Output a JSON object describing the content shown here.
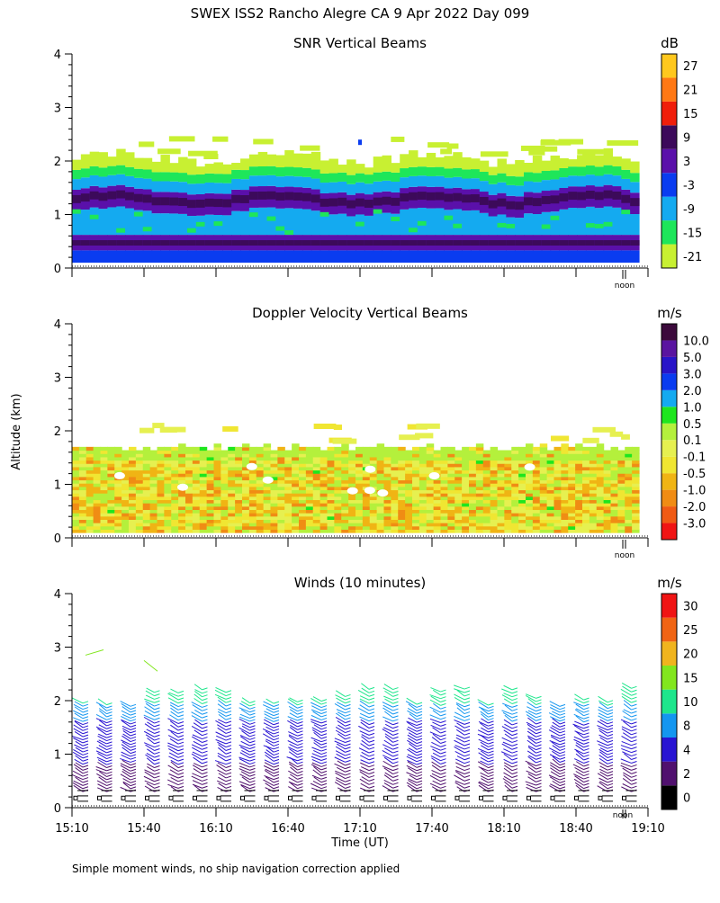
{
  "header": {
    "title": "SWEX ISS2 Rancho Alegre CA    9 Apr 2022 Day 099",
    "footnote": "Simple moment winds, no ship navigation correction applied"
  },
  "axes": {
    "ylabel": "Altitude (km)",
    "xlabel": "Time (UT)",
    "yticks": [
      "0",
      "1",
      "2",
      "3",
      "4"
    ],
    "xticks": [
      "15:10",
      "15:40",
      "16:10",
      "16:40",
      "17:10",
      "17:40",
      "18:10",
      "18:40",
      "19:10"
    ],
    "noon_marker": "noon"
  },
  "colors": {
    "snr": [
      "#c8f032",
      "#1ee65a",
      "#14aaf0",
      "#0a3cf0",
      "#5a10aa",
      "#3c0a5a",
      "#f01e0a",
      "#ff7814",
      "#ffc81e"
    ],
    "doppler": [
      "#f01414",
      "#f05a14",
      "#f08c14",
      "#f0b414",
      "#f0e632",
      "#e6f050",
      "#b4f03c",
      "#1ee61e",
      "#14aaf0",
      "#0a3cf0",
      "#2814c8",
      "#5a14a0",
      "#3c0a3c"
    ],
    "winds": [
      "#000000",
      "#50106e",
      "#2814d2",
      "#1496f0",
      "#1ee68c",
      "#82e61e",
      "#f0b41e",
      "#f06414",
      "#f01414"
    ]
  },
  "chart_data": [
    {
      "type": "heatmap",
      "title": "SNR Vertical Beams",
      "units": "dB",
      "colorbar_labels": [
        "27",
        "21",
        "15",
        "9",
        "3",
        "-3",
        "-9",
        "-15",
        "-21"
      ],
      "xlim": [
        "15:10",
        "19:10"
      ],
      "ylim": [
        0,
        4
      ],
      "description_layers": [
        {
          "from_km": 0.1,
          "to_km": 0.35,
          "level": "-3"
        },
        {
          "from_km": 0.35,
          "to_km": 0.6,
          "level": "9"
        },
        {
          "from_km": 0.6,
          "to_km": 1.1,
          "level": "-9"
        },
        {
          "from_km": 1.1,
          "to_km": 1.5,
          "level": "3"
        },
        {
          "from_km": 1.5,
          "to_km": 1.8,
          "level": "-15"
        },
        {
          "from_km": 1.8,
          "to_km": 2.2,
          "level": "-21"
        }
      ]
    },
    {
      "type": "heatmap",
      "title": "Doppler Velocity Vertical Beams",
      "units": "m/s",
      "colorbar_labels": [
        "10.0",
        "5.0",
        "3.0",
        "2.0",
        "1.0",
        "0.5",
        "0.1",
        "-0.1",
        "-0.5",
        "-1.0",
        "-2.0",
        "-3.0"
      ],
      "xlim": [
        "15:10",
        "19:10"
      ],
      "ylim": [
        0,
        4
      ],
      "top_km": 1.7
    },
    {
      "type": "scatter",
      "title": "Winds (10 minutes)",
      "units": "m/s",
      "colorbar_labels": [
        "30",
        "25",
        "20",
        "15",
        "10",
        "8",
        "4",
        "2",
        "0"
      ],
      "xlim": [
        "15:10",
        "19:10"
      ],
      "ylim": [
        0,
        4
      ],
      "profile_times": [
        "15:15",
        "15:25",
        "15:35",
        "15:45",
        "15:55",
        "16:05",
        "16:15",
        "16:25",
        "16:35",
        "16:45",
        "16:55",
        "17:05",
        "17:15",
        "17:25",
        "17:35",
        "17:45",
        "17:55",
        "18:05",
        "18:15",
        "18:25",
        "18:35",
        "18:45",
        "18:55",
        "19:05"
      ]
    }
  ]
}
